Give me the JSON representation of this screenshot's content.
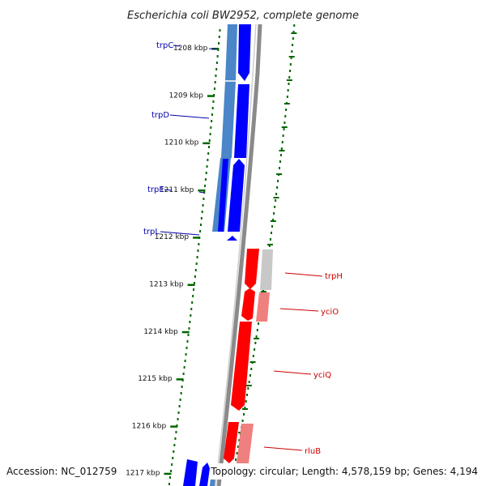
{
  "title": "Escherichia coli BW2952, complete genome",
  "footer": {
    "accession": "Accession: NC_012759",
    "stats": "Topology: circular; Length: 4,578,159 bp; Genes: 4,194"
  },
  "colors": {
    "forward_gene": "#0000ff",
    "forward_gene_light": "#4a86c8",
    "reverse_gene": "#ff0000",
    "reverse_gene_light": "#f08080",
    "backbone": "#888888",
    "tick": "#006600",
    "blue_label": "#0000aa",
    "red_label": "#cc0000"
  },
  "ticks": [
    "1208 kbp",
    "1209 kbp",
    "1210 kbp",
    "1211 kbp",
    "1212 kbp",
    "1213 kbp",
    "1214 kbp",
    "1215 kbp",
    "1216 kbp",
    "1217 kbp"
  ],
  "genes_forward": [
    "trpC",
    "trpD",
    "trpE",
    "trpL"
  ],
  "genes_reverse": [
    "trpH",
    "yciO",
    "yciQ",
    "rluB"
  ]
}
